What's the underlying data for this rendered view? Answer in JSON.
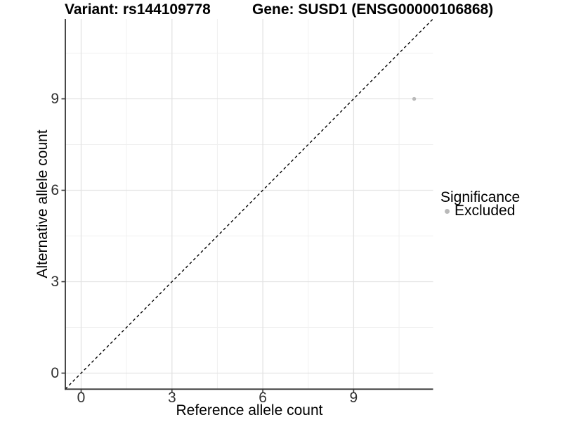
{
  "page": {
    "background": "#ffffff"
  },
  "chart_data": {
    "type": "scatter",
    "titles": {
      "left": "Variant: rs144109778",
      "right": "Gene: SUSD1 (ENSG00000106868)"
    },
    "xlabel": "Reference allele count",
    "ylabel": "Alternative allele count",
    "x_ticks": [
      0,
      3,
      6,
      9
    ],
    "y_ticks": [
      0,
      3,
      6,
      9
    ],
    "x_minor_gridlines": [
      1.5,
      4.5,
      7.5,
      10.5
    ],
    "y_minor_gridlines": [
      1.5,
      4.5,
      7.5,
      10.5
    ],
    "xlim": [
      -0.55,
      11.65
    ],
    "ylim": [
      -0.55,
      11.65
    ],
    "grid": "major+minor",
    "reference_line": {
      "style": "dashed",
      "color": "#000000",
      "equation": "y = x"
    },
    "series": [
      {
        "name": "Excluded",
        "color": "#b9b9b9",
        "point_radius": 2.7,
        "points": [
          [
            11,
            9
          ]
        ]
      }
    ],
    "legend": {
      "title": "Significance",
      "position": "right",
      "items": [
        {
          "label": "Excluded",
          "color": "#b9b9b9"
        }
      ]
    },
    "colors": {
      "major_grid": "#e3e3e3",
      "minor_grid": "#f0f0f0",
      "axis_line": "#333333",
      "tick_label": "#303030",
      "title": "#000000"
    }
  }
}
